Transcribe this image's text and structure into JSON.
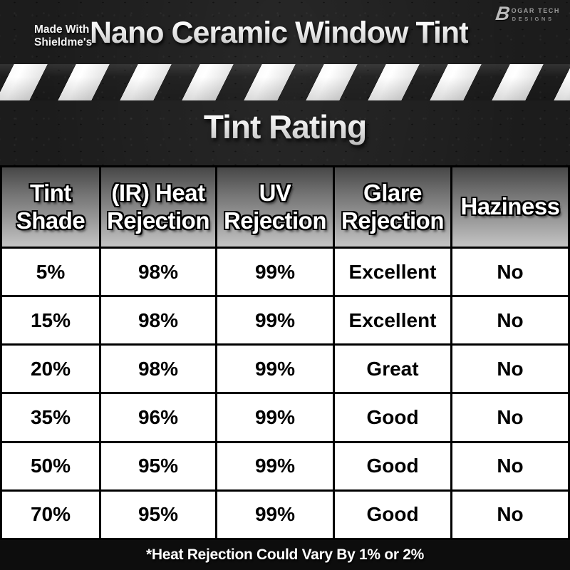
{
  "header": {
    "made_with_line1": "Made With",
    "made_with_line2": "Shieldme's",
    "title": "Nano Ceramic Window Tint",
    "logo": {
      "letter": "B",
      "line1": "OGAR TECH",
      "line2": "DESIGNS"
    }
  },
  "section_title": "Tint Rating",
  "table": {
    "columns": [
      "Tint\nShade",
      "(IR) Heat\nRejection",
      "UV\nRejection",
      "Glare\nRejection",
      "Haziness"
    ],
    "rows": [
      [
        "5%",
        "98%",
        "99%",
        "Excellent",
        "No"
      ],
      [
        "15%",
        "98%",
        "99%",
        "Excellent",
        "No"
      ],
      [
        "20%",
        "98%",
        "99%",
        "Great",
        "No"
      ],
      [
        "35%",
        "96%",
        "99%",
        "Good",
        "No"
      ],
      [
        "50%",
        "95%",
        "99%",
        "Good",
        "No"
      ],
      [
        "70%",
        "95%",
        "99%",
        "Good",
        "No"
      ]
    ]
  },
  "footer": {
    "note": "*Heat Rejection Could Vary By 1% or 2%"
  },
  "colors": {
    "background": "#1c1c1c",
    "stripe": "#f2f2f2",
    "header_gradient_top": "#474747",
    "header_gradient_bottom": "#c4c4c4",
    "cell_background": "#ffffff",
    "text_light": "#ffffff",
    "text_dark": "#000000",
    "footer_bar": "#0d0d0d"
  }
}
